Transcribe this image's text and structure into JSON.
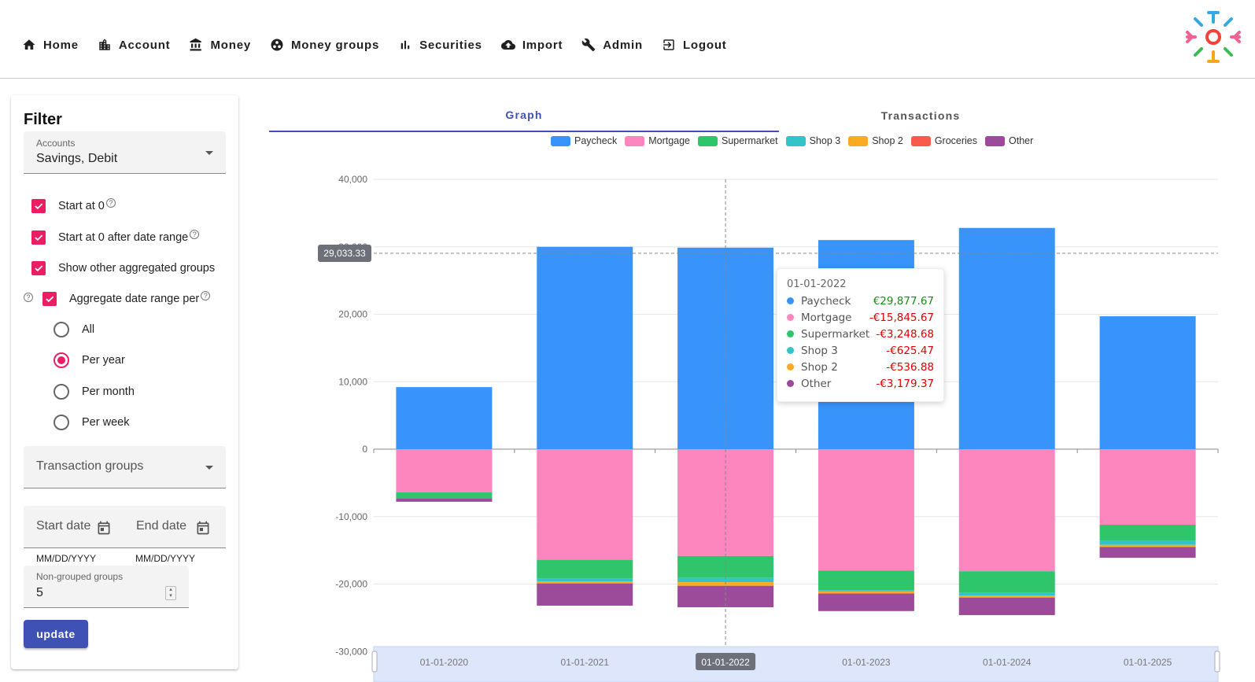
{
  "nav": {
    "items": [
      {
        "label": "Home",
        "icon": "home-icon"
      },
      {
        "label": "Account",
        "icon": "building-icon"
      },
      {
        "label": "Money",
        "icon": "bank-icon"
      },
      {
        "label": "Money groups",
        "icon": "groups-icon"
      },
      {
        "label": "Securities",
        "icon": "bar-chart-icon"
      },
      {
        "label": "Import",
        "icon": "cloud-upload-icon"
      },
      {
        "label": "Admin",
        "icon": "wrench-icon"
      },
      {
        "label": "Logout",
        "icon": "logout-icon"
      }
    ]
  },
  "filter": {
    "title": "Filter",
    "accounts_label": "Accounts",
    "accounts_value": "Savings, Debit",
    "start_at_zero": "Start at 0",
    "start_after_range": "Start at 0 after date range",
    "show_other": "Show other aggregated groups",
    "aggregate": "Aggregate date range per",
    "radio": {
      "all": "All",
      "year": "Per year",
      "month": "Per month",
      "week": "Per week"
    },
    "selected_radio": "Per year",
    "transaction_groups": "Transaction groups",
    "start_date": "Start date",
    "end_date": "End date",
    "date_format": "MM/DD/YYYY",
    "non_grouped_label": "Non-grouped groups",
    "non_grouped_value": "5",
    "update": "update"
  },
  "tabs": {
    "graph": "Graph",
    "transactions": "Transactions",
    "active": "Graph"
  },
  "colors": {
    "Paycheck": "#3894fb",
    "Mortgage": "#fe86bf",
    "Supermarket": "#2fc56b",
    "Shop 3": "#33c3c8",
    "Shop 2": "#fbab23",
    "Groceries": "#fa5a4c",
    "Other": "#9b4b9a",
    "accent": "#e91e63",
    "primary": "#3f51b5"
  },
  "chart_data": {
    "type": "bar",
    "stacked": true,
    "categories": [
      "01-01-2020",
      "01-01-2021",
      "01-01-2022",
      "01-01-2023",
      "01-01-2024",
      "01-01-2025"
    ],
    "series": [
      {
        "name": "Paycheck",
        "values": [
          9200,
          30000,
          29877.67,
          31000,
          32800,
          19700
        ]
      },
      {
        "name": "Mortgage",
        "values": [
          -6400,
          -16400,
          -15845.67,
          -18000,
          -18100,
          -11200
        ]
      },
      {
        "name": "Supermarket",
        "values": [
          -900,
          -2800,
          -3248.68,
          -2900,
          -3200,
          -2400
        ]
      },
      {
        "name": "Shop 3",
        "values": [
          0,
          -400,
          -625.47,
          -200,
          -400,
          -600
        ]
      },
      {
        "name": "Shop 2",
        "values": [
          0,
          -300,
          -536.88,
          -300,
          -300,
          -300
        ]
      },
      {
        "name": "Groceries",
        "values": [
          0,
          0,
          0,
          0,
          0,
          0
        ]
      },
      {
        "name": "Other",
        "values": [
          -500,
          -3300,
          -3179.37,
          -2600,
          -2600,
          -1600
        ]
      }
    ],
    "ylim": [
      -30000,
      40000
    ],
    "yticks": [
      "40,000",
      "30,000",
      "20,000",
      "10,000",
      "0",
      "-10,000",
      "-20,000",
      "-30,000"
    ],
    "ytick_values": [
      40000,
      30000,
      20000,
      10000,
      0,
      -10000,
      -20000,
      -30000
    ],
    "crosshair_y_value": 29033.33,
    "crosshair_y_label": "29,033.33",
    "crosshair_x_category": "01-01-2022",
    "grid": true,
    "legend_position": "top"
  },
  "tooltip": {
    "title": "01-01-2022",
    "rows": [
      {
        "name": "Paycheck",
        "value": "€29,877.67",
        "positive": true
      },
      {
        "name": "Mortgage",
        "value": "-€15,845.67",
        "positive": false
      },
      {
        "name": "Supermarket",
        "value": "-€3,248.68",
        "positive": false
      },
      {
        "name": "Shop 3",
        "value": "-€625.47",
        "positive": false
      },
      {
        "name": "Shop 2",
        "value": "-€536.88",
        "positive": false
      },
      {
        "name": "Other",
        "value": "-€3,179.37",
        "positive": false
      }
    ]
  }
}
